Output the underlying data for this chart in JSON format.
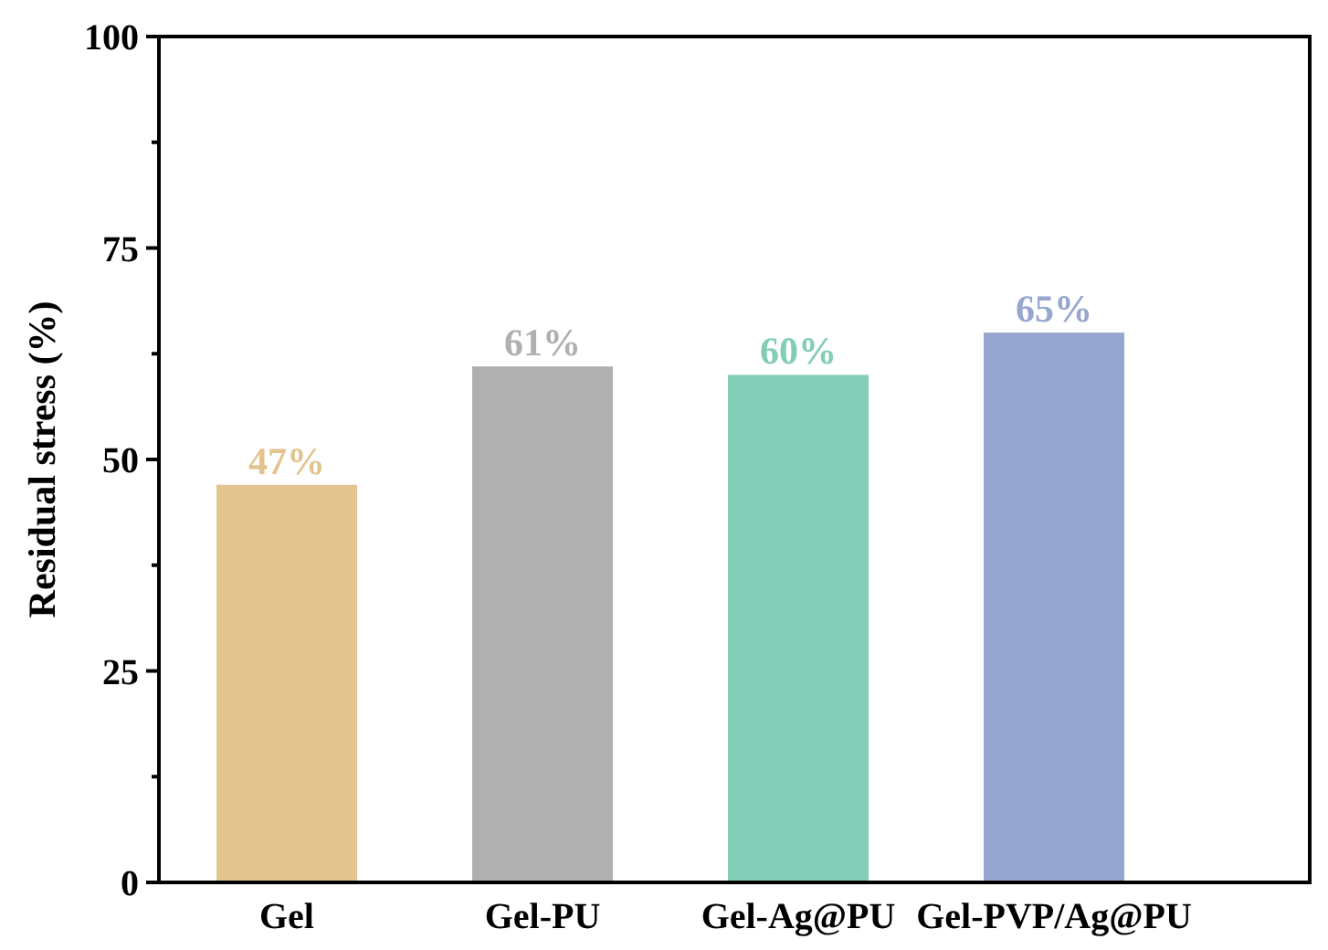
{
  "chart_data": {
    "type": "bar",
    "ylabel": "Residual stress (%)",
    "categories": [
      "Gel",
      "Gel-PU",
      "Gel-Ag@PU",
      "Gel-PVP/Ag@PU"
    ],
    "values": [
      47,
      61,
      60,
      65
    ],
    "colors": [
      "#e3c48f",
      "#b0b0b0",
      "#82cdb5",
      "#96a6cf"
    ],
    "value_labels": [
      "47%",
      "61%",
      "60%",
      "65%"
    ],
    "ylim": [
      0,
      100
    ],
    "yticks": [
      0,
      {
        "value": 12.5,
        "label": null
      },
      25,
      {
        "value": 37.5,
        "label": null
      },
      50,
      {
        "value": 62.5,
        "label": null
      },
      75,
      {
        "value": 87.5,
        "label": null
      },
      100
    ],
    "grid": false
  }
}
